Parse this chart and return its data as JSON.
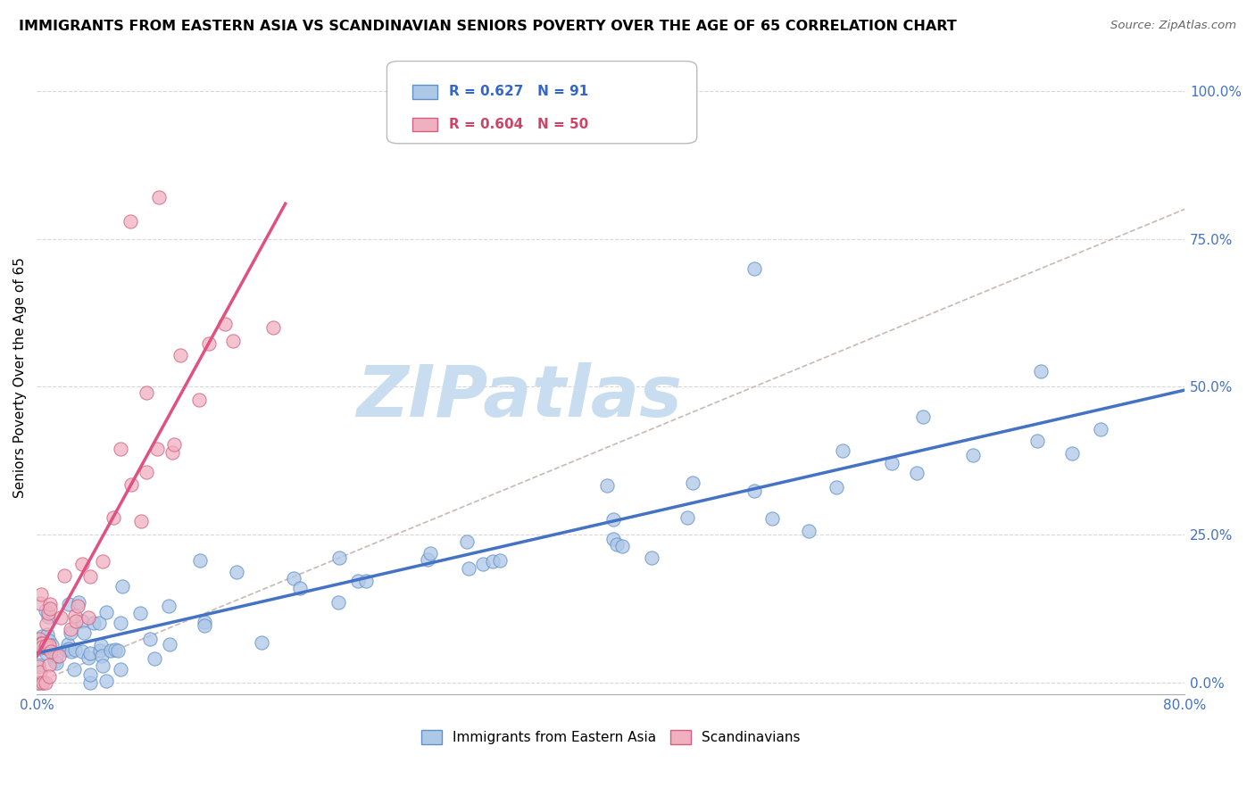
{
  "title": "IMMIGRANTS FROM EASTERN ASIA VS SCANDINAVIAN SENIORS POVERTY OVER THE AGE OF 65 CORRELATION CHART",
  "source": "Source: ZipAtlas.com",
  "ylabel": "Seniors Poverty Over the Age of 65",
  "right_yticks": [
    0.0,
    0.25,
    0.5,
    0.75,
    1.0
  ],
  "right_yticklabels": [
    "0.0%",
    "25.0%",
    "50.0%",
    "75.0%",
    "100.0%"
  ],
  "xlim": [
    0.0,
    0.8
  ],
  "ylim": [
    -0.02,
    1.05
  ],
  "blue_R": 0.627,
  "blue_N": 91,
  "pink_R": 0.604,
  "pink_N": 50,
  "blue_line_color": "#4472c4",
  "blue_scatter_face": "#aec8e8",
  "blue_scatter_edge": "#6090c8",
  "pink_line_color": "#e05080",
  "pink_scatter_face": "#f0b0c0",
  "pink_scatter_edge": "#d06080",
  "legend_blue_label": "Immigrants from Eastern Asia",
  "legend_pink_label": "Scandinavians",
  "watermark": "ZIPatlas",
  "watermark_color": "#c8ddf0",
  "grid_color": "#d8d8d8",
  "ref_line_color": "#c8b8b8",
  "blue_seed": 12345,
  "pink_seed": 67890
}
